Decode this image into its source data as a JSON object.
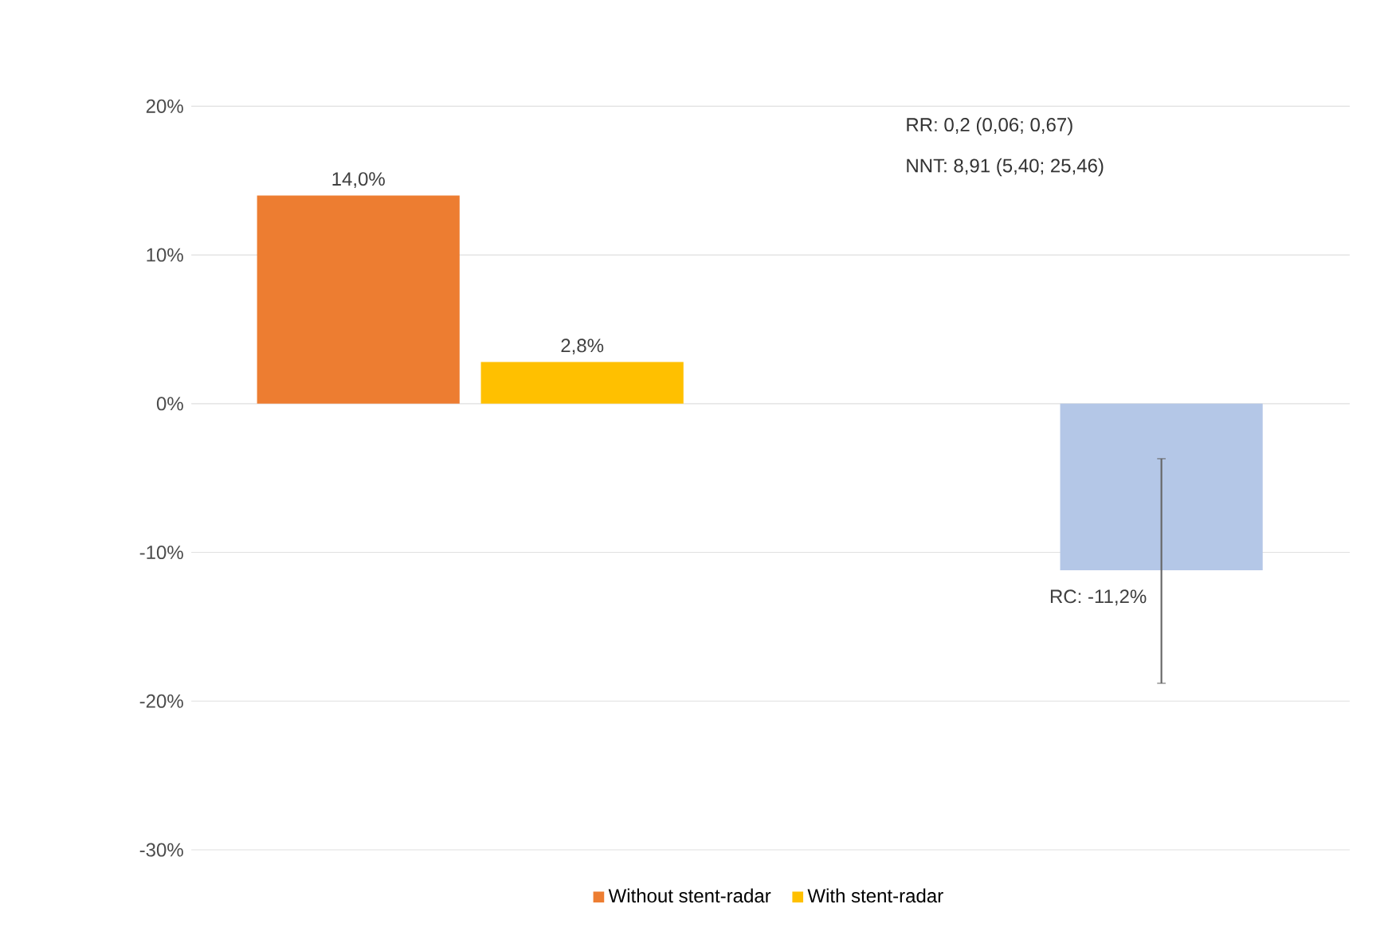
{
  "chart_data": {
    "type": "bar",
    "categories": [
      null,
      null
    ],
    "series": [
      {
        "name": "Without stent-radar",
        "color": "#ed7d31",
        "values": [
          14.0,
          null
        ],
        "value_labels": [
          "14,0%",
          null
        ]
      },
      {
        "name": "With stent-radar",
        "color": "#ffc000",
        "values": [
          2.8,
          null
        ],
        "value_labels": [
          "2,8%",
          null
        ]
      },
      {
        "color": "#b4c7e7",
        "values": [
          null,
          -11.2
        ],
        "value_labels": [
          null,
          "RC: -11,2%"
        ],
        "errors": [
          null,
          [
            -18.8,
            -3.7
          ]
        ]
      }
    ],
    "ylim": [
      -30,
      20
    ],
    "yticks": [
      {
        "value": -30,
        "label": "-30%"
      },
      {
        "value": -20,
        "label": "-20%"
      },
      {
        "value": -10,
        "label": "-10%"
      },
      {
        "value": 0,
        "label": "0%"
      },
      {
        "value": 10,
        "label": "10%"
      },
      {
        "value": 20,
        "label": "20%"
      }
    ],
    "grid": "y",
    "legend": "bottom",
    "annotations": [
      "RR:   0,2 (0,06; 0,67)",
      "NNT:  8,91 (5,40; 25,46)"
    ]
  }
}
